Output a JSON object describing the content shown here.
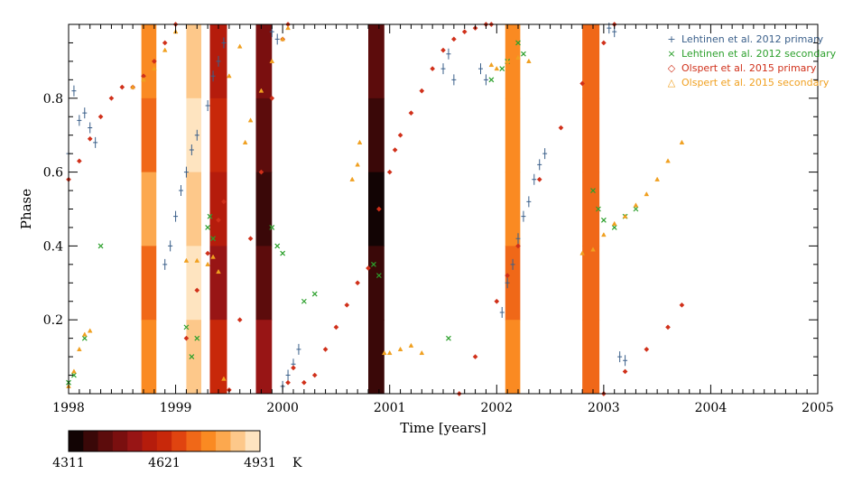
{
  "chart_data": {
    "type": "scatter",
    "title": "",
    "xlabel": "Time [years]",
    "ylabel": "Phase",
    "xlim": [
      1998,
      2005
    ],
    "ylim": [
      0,
      1
    ],
    "x_ticks": [
      1998,
      1999,
      2000,
      2001,
      2002,
      2003,
      2004,
      2005
    ],
    "x_tick_labels": [
      "1998",
      "1999",
      "2000",
      "2001",
      "2002",
      "2003",
      "2004",
      "2005"
    ],
    "y_ticks": [
      0.2,
      0.4,
      0.6,
      0.8
    ],
    "y_tick_labels": [
      "0.2",
      "0.4",
      "0.6",
      "0.8"
    ],
    "grid": false,
    "legend_position": "top-right",
    "series": [
      {
        "name": "Lehtinen et al. 2012 primary",
        "marker": "+",
        "color": "#3a5f8a",
        "x": [
          1998.0,
          1998.05,
          1998.1,
          1998.15,
          1998.2,
          1998.25,
          1998.9,
          1998.95,
          1999.0,
          1999.05,
          1999.1,
          1999.15,
          1999.2,
          1999.3,
          1999.35,
          1999.4,
          1999.45,
          1999.9,
          1999.95,
          2000.0,
          2000.05,
          2000.1,
          2000.15,
          2001.5,
          2001.55,
          2001.6,
          2001.85,
          2001.9,
          2002.05,
          2002.1,
          2002.15,
          2002.2,
          2002.25,
          2002.3,
          2002.35,
          2002.4,
          2002.45,
          2003.05,
          2003.1,
          2003.15,
          2003.2
        ],
        "y": [
          0.65,
          0.82,
          0.74,
          0.76,
          0.72,
          0.68,
          0.35,
          0.4,
          0.48,
          0.55,
          0.6,
          0.66,
          0.7,
          0.78,
          0.86,
          0.9,
          0.95,
          0.98,
          0.96,
          0.02,
          0.05,
          0.08,
          0.12,
          0.88,
          0.92,
          0.85,
          0.88,
          0.85,
          0.22,
          0.3,
          0.35,
          0.42,
          0.48,
          0.52,
          0.58,
          0.62,
          0.65,
          0.99,
          0.98,
          0.1,
          0.09
        ]
      },
      {
        "name": "Lehtinen et al. 2012 secondary",
        "marker": "x",
        "color": "#2ca02c",
        "x": [
          1998.0,
          1998.05,
          1998.15,
          1998.3,
          1999.1,
          1999.15,
          1999.2,
          1999.3,
          1999.32,
          1999.35,
          1999.9,
          1999.95,
          2000.0,
          2000.2,
          2000.3,
          2000.85,
          2000.9,
          2001.55,
          2001.95,
          2002.05,
          2002.1,
          2002.2,
          2002.25,
          2002.9,
          2002.95,
          2003.0,
          2003.1,
          2003.2,
          2003.3
        ],
        "y": [
          0.03,
          0.05,
          0.15,
          0.4,
          0.18,
          0.1,
          0.15,
          0.45,
          0.48,
          0.42,
          0.45,
          0.4,
          0.38,
          0.25,
          0.27,
          0.35,
          0.32,
          0.15,
          0.85,
          0.88,
          0.9,
          0.95,
          0.92,
          0.55,
          0.5,
          0.47,
          0.45,
          0.48,
          0.5
        ]
      },
      {
        "name": "Olspert et al. 2015 primary",
        "marker": "diamond",
        "color": "#d0301a",
        "x": [
          1998.0,
          1998.1,
          1998.2,
          1998.3,
          1998.4,
          1998.5,
          1998.6,
          1998.7,
          1998.8,
          1998.9,
          1999.0,
          1999.1,
          1999.2,
          1999.3,
          1999.4,
          1999.45,
          1999.5,
          1999.6,
          1999.7,
          1999.8,
          1999.9,
          2000.0,
          2000.05,
          null,
          2000.05,
          2000.1,
          2000.2,
          2000.3,
          2000.4,
          2000.5,
          2000.6,
          2000.7,
          2000.8,
          2000.9,
          2001.0,
          2001.05,
          2001.1,
          2001.2,
          2001.3,
          2001.4,
          2001.5,
          2001.6,
          2001.7,
          2001.8,
          2001.9,
          2001.95,
          null,
          2001.65,
          2001.8,
          2002.0,
          2002.1,
          2002.2,
          2002.4,
          2002.6,
          2002.8,
          2003.0,
          2003.1,
          null,
          2003.0,
          2003.2,
          2003.4,
          2003.6,
          2003.73
        ],
        "y": [
          0.58,
          0.63,
          0.69,
          0.75,
          0.8,
          0.83,
          0.83,
          0.86,
          0.9,
          0.95,
          1.0,
          0.15,
          0.28,
          0.38,
          0.47,
          0.52,
          0.01,
          0.2,
          0.42,
          0.6,
          0.8,
          0.96,
          1.0,
          null,
          0.03,
          0.07,
          0.03,
          0.05,
          0.12,
          0.18,
          0.24,
          0.3,
          0.34,
          0.5,
          0.6,
          0.66,
          0.7,
          0.76,
          0.82,
          0.88,
          0.93,
          0.96,
          0.98,
          0.99,
          1.0,
          1.0,
          null,
          0.0,
          0.1,
          0.25,
          0.32,
          0.4,
          0.58,
          0.72,
          0.84,
          0.95,
          1.0,
          null,
          0.0,
          0.06,
          0.12,
          0.18,
          0.24
        ]
      },
      {
        "name": "Olspert et al. 2015 secondary",
        "marker": "triangle",
        "color": "#f0a020",
        "x": [
          1998.0,
          1998.05,
          1998.1,
          1998.15,
          1998.2,
          null,
          1998.6,
          1998.7,
          1998.8,
          1998.9,
          1999.0,
          null,
          1999.1,
          1999.2,
          1999.3,
          1999.35,
          1999.4,
          1999.45,
          1999.5,
          1999.6,
          null,
          1999.65,
          1999.7,
          1999.8,
          1999.9,
          2000.0,
          2000.05,
          null,
          2000.65,
          2000.7,
          2000.72,
          null,
          2000.95,
          2001.0,
          2001.1,
          2001.2,
          2001.3,
          null,
          2001.95,
          2002.0,
          2002.1,
          2002.2,
          2002.3,
          null,
          2002.8,
          2002.9,
          2003.0,
          2003.1,
          2003.2,
          2003.3,
          2003.4,
          2003.5,
          2003.6,
          2003.73
        ],
        "y": [
          0.02,
          0.06,
          0.12,
          0.16,
          0.17,
          null,
          0.83,
          0.85,
          0.88,
          0.93,
          0.98,
          null,
          0.36,
          0.36,
          0.35,
          0.37,
          0.33,
          0.04,
          0.86,
          0.94,
          null,
          0.68,
          0.74,
          0.82,
          0.9,
          0.96,
          0.99,
          null,
          0.58,
          0.62,
          0.68,
          null,
          0.11,
          0.11,
          0.12,
          0.13,
          0.11,
          null,
          0.89,
          0.88,
          0.9,
          0.91,
          0.9,
          null,
          0.38,
          0.39,
          0.43,
          0.46,
          0.48,
          0.51,
          0.54,
          0.58,
          0.63,
          0.68
        ]
      }
    ],
    "temperature_bands": [
      {
        "start": 1998.68,
        "end": 1998.82,
        "values": [
          4760,
          4740,
          4800,
          4720,
          4760
        ]
      },
      {
        "start": 1999.1,
        "end": 1999.24,
        "values": [
          4860,
          4900,
          4880,
          4920,
          4870
        ]
      },
      {
        "start": 1999.32,
        "end": 1999.48,
        "values": [
          4560,
          4600,
          4580,
          4520,
          4600
        ]
      },
      {
        "start": 1999.75,
        "end": 1999.9,
        "values": [
          4500,
          4420,
          4380,
          4450,
          4520
        ]
      },
      {
        "start": 2000.8,
        "end": 2000.95,
        "values": [
          4420,
          4380,
          4330,
          4360,
          4400
        ]
      },
      {
        "start": 2002.08,
        "end": 2002.22,
        "values": [
          4780,
          4760,
          4780,
          4740,
          4770
        ]
      },
      {
        "start": 2002.8,
        "end": 2002.96,
        "values": [
          4720,
          4730,
          4710,
          4720,
          4700
        ]
      }
    ],
    "colorbar": {
      "min": 4311,
      "max": 4931,
      "ticks": [
        "4311",
        "4621",
        "4931"
      ],
      "unit": "K",
      "colors": [
        "#120404",
        "#3a0808",
        "#5c0c0c",
        "#7a0f0f",
        "#981515",
        "#b51c0c",
        "#c8280a",
        "#e04410",
        "#f06818",
        "#fa8a22",
        "#fca84e",
        "#fdc88a",
        "#fee4c0"
      ]
    }
  }
}
